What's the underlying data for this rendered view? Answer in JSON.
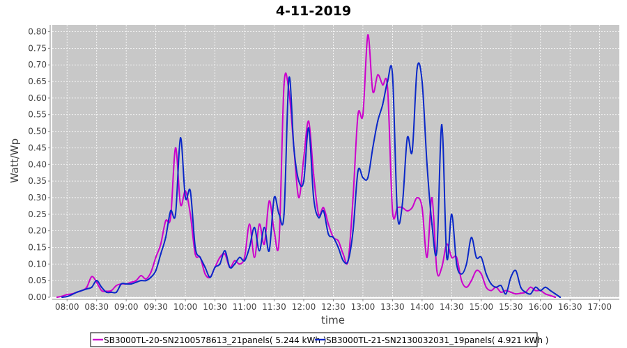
{
  "chart_data": {
    "type": "line",
    "title": "4-11-2019",
    "xlabel": "time",
    "ylabel": "Watt/Wp",
    "ylim": [
      0,
      0.82
    ],
    "xlim": [
      "07:45",
      "17:20"
    ],
    "grid": true,
    "legend_position": "bottom",
    "y_ticks": [
      "0.00",
      "0.05",
      "0.10",
      "0.15",
      "0.20",
      "0.25",
      "0.30",
      "0.35",
      "0.40",
      "0.45",
      "0.50",
      "0.55",
      "0.60",
      "0.65",
      "0.70",
      "0.75",
      "0.80"
    ],
    "x_ticks": [
      "08:00",
      "08:30",
      "09:00",
      "09:30",
      "10:00",
      "10:30",
      "11:00",
      "11:30",
      "12:00",
      "12:30",
      "13:00",
      "13:30",
      "14:00",
      "14:30",
      "15:00",
      "15:30",
      "16:00",
      "16:30",
      "17:00"
    ],
    "colors": {
      "plot_background": "#c8c8c8",
      "grid": "#ffffff",
      "series_1": "#cc00cc",
      "series_2": "#0a28c8"
    },
    "series": [
      {
        "name": "SB3000TL-20-SN2100578613_21panels( 5.244 kWh )",
        "color": "#cc00cc",
        "points": [
          [
            "07:50",
            0.0
          ],
          [
            "07:55",
            0.003
          ],
          [
            "08:00",
            0.008
          ],
          [
            "08:05",
            0.01
          ],
          [
            "08:10",
            0.015
          ],
          [
            "08:15",
            0.02
          ],
          [
            "08:20",
            0.03
          ],
          [
            "08:25",
            0.062
          ],
          [
            "08:30",
            0.045
          ],
          [
            "08:35",
            0.02
          ],
          [
            "08:40",
            0.018
          ],
          [
            "08:45",
            0.02
          ],
          [
            "08:50",
            0.035
          ],
          [
            "08:55",
            0.04
          ],
          [
            "09:00",
            0.04
          ],
          [
            "09:05",
            0.045
          ],
          [
            "09:10",
            0.05
          ],
          [
            "09:15",
            0.065
          ],
          [
            "09:20",
            0.055
          ],
          [
            "09:25",
            0.075
          ],
          [
            "09:30",
            0.12
          ],
          [
            "09:35",
            0.16
          ],
          [
            "09:40",
            0.23
          ],
          [
            "09:45",
            0.24
          ],
          [
            "09:50",
            0.45
          ],
          [
            "09:55",
            0.28
          ],
          [
            "10:00",
            0.32
          ],
          [
            "10:05",
            0.25
          ],
          [
            "10:10",
            0.13
          ],
          [
            "10:15",
            0.12
          ],
          [
            "10:20",
            0.07
          ],
          [
            "10:25",
            0.06
          ],
          [
            "10:30",
            0.09
          ],
          [
            "10:35",
            0.12
          ],
          [
            "10:40",
            0.13
          ],
          [
            "10:45",
            0.09
          ],
          [
            "10:50",
            0.11
          ],
          [
            "10:55",
            0.1
          ],
          [
            "11:00",
            0.12
          ],
          [
            "11:05",
            0.22
          ],
          [
            "11:10",
            0.12
          ],
          [
            "11:15",
            0.22
          ],
          [
            "11:20",
            0.16
          ],
          [
            "11:25",
            0.29
          ],
          [
            "11:30",
            0.2
          ],
          [
            "11:35",
            0.17
          ],
          [
            "11:40",
            0.64
          ],
          [
            "11:45",
            0.62
          ],
          [
            "11:50",
            0.45
          ],
          [
            "11:55",
            0.3
          ],
          [
            "12:00",
            0.42
          ],
          [
            "12:05",
            0.53
          ],
          [
            "12:10",
            0.37
          ],
          [
            "12:15",
            0.25
          ],
          [
            "12:20",
            0.27
          ],
          [
            "12:25",
            0.22
          ],
          [
            "12:30",
            0.18
          ],
          [
            "12:35",
            0.17
          ],
          [
            "12:40",
            0.13
          ],
          [
            "12:45",
            0.11
          ],
          [
            "12:50",
            0.3
          ],
          [
            "12:55",
            0.55
          ],
          [
            "13:00",
            0.55
          ],
          [
            "13:05",
            0.79
          ],
          [
            "13:10",
            0.62
          ],
          [
            "13:15",
            0.67
          ],
          [
            "13:20",
            0.64
          ],
          [
            "13:25",
            0.63
          ],
          [
            "13:30",
            0.26
          ],
          [
            "13:35",
            0.27
          ],
          [
            "13:40",
            0.27
          ],
          [
            "13:45",
            0.26
          ],
          [
            "13:50",
            0.27
          ],
          [
            "13:55",
            0.3
          ],
          [
            "14:00",
            0.27
          ],
          [
            "14:05",
            0.12
          ],
          [
            "14:10",
            0.3
          ],
          [
            "14:15",
            0.08
          ],
          [
            "14:20",
            0.09
          ],
          [
            "14:25",
            0.16
          ],
          [
            "14:30",
            0.12
          ],
          [
            "14:35",
            0.12
          ],
          [
            "14:40",
            0.05
          ],
          [
            "14:45",
            0.03
          ],
          [
            "14:50",
            0.05
          ],
          [
            "14:55",
            0.08
          ],
          [
            "15:00",
            0.07
          ],
          [
            "15:05",
            0.03
          ],
          [
            "15:10",
            0.02
          ],
          [
            "15:15",
            0.03
          ],
          [
            "15:20",
            0.015
          ],
          [
            "15:25",
            0.02
          ],
          [
            "15:30",
            0.015
          ],
          [
            "15:35",
            0.01
          ],
          [
            "15:40",
            0.012
          ],
          [
            "15:45",
            0.015
          ],
          [
            "15:50",
            0.03
          ],
          [
            "15:55",
            0.02
          ],
          [
            "16:00",
            0.02
          ],
          [
            "16:05",
            0.01
          ],
          [
            "16:10",
            0.005
          ],
          [
            "16:15",
            0.0
          ]
        ]
      },
      {
        "name": "SB3000TL-21-SN2130032031_19panels( 4.921 kWh )",
        "color": "#0a28c8",
        "points": [
          [
            "07:55",
            0.0
          ],
          [
            "08:00",
            0.002
          ],
          [
            "08:05",
            0.008
          ],
          [
            "08:10",
            0.015
          ],
          [
            "08:15",
            0.02
          ],
          [
            "08:20",
            0.025
          ],
          [
            "08:25",
            0.03
          ],
          [
            "08:30",
            0.05
          ],
          [
            "08:35",
            0.03
          ],
          [
            "08:40",
            0.015
          ],
          [
            "08:45",
            0.015
          ],
          [
            "08:50",
            0.015
          ],
          [
            "08:55",
            0.04
          ],
          [
            "09:00",
            0.04
          ],
          [
            "09:05",
            0.04
          ],
          [
            "09:10",
            0.045
          ],
          [
            "09:15",
            0.05
          ],
          [
            "09:20",
            0.05
          ],
          [
            "09:25",
            0.06
          ],
          [
            "09:30",
            0.08
          ],
          [
            "09:35",
            0.13
          ],
          [
            "09:40",
            0.18
          ],
          [
            "09:45",
            0.26
          ],
          [
            "09:50",
            0.25
          ],
          [
            "09:55",
            0.48
          ],
          [
            "10:00",
            0.3
          ],
          [
            "10:05",
            0.32
          ],
          [
            "10:10",
            0.15
          ],
          [
            "10:15",
            0.12
          ],
          [
            "10:20",
            0.09
          ],
          [
            "10:25",
            0.06
          ],
          [
            "10:30",
            0.09
          ],
          [
            "10:35",
            0.1
          ],
          [
            "10:40",
            0.14
          ],
          [
            "10:45",
            0.09
          ],
          [
            "10:50",
            0.1
          ],
          [
            "10:55",
            0.12
          ],
          [
            "11:00",
            0.11
          ],
          [
            "11:05",
            0.15
          ],
          [
            "11:10",
            0.21
          ],
          [
            "11:15",
            0.14
          ],
          [
            "11:20",
            0.21
          ],
          [
            "11:25",
            0.14
          ],
          [
            "11:30",
            0.3
          ],
          [
            "11:35",
            0.25
          ],
          [
            "11:40",
            0.25
          ],
          [
            "11:45",
            0.66
          ],
          [
            "11:50",
            0.45
          ],
          [
            "11:55",
            0.35
          ],
          [
            "12:00",
            0.35
          ],
          [
            "12:05",
            0.51
          ],
          [
            "12:10",
            0.3
          ],
          [
            "12:15",
            0.24
          ],
          [
            "12:20",
            0.26
          ],
          [
            "12:25",
            0.19
          ],
          [
            "12:30",
            0.18
          ],
          [
            "12:35",
            0.15
          ],
          [
            "12:40",
            0.11
          ],
          [
            "12:45",
            0.11
          ],
          [
            "12:50",
            0.2
          ],
          [
            "12:55",
            0.38
          ],
          [
            "13:00",
            0.36
          ],
          [
            "13:05",
            0.36
          ],
          [
            "13:10",
            0.45
          ],
          [
            "13:15",
            0.53
          ],
          [
            "13:20",
            0.58
          ],
          [
            "13:25",
            0.65
          ],
          [
            "13:30",
            0.67
          ],
          [
            "13:35",
            0.25
          ],
          [
            "13:40",
            0.28
          ],
          [
            "13:45",
            0.48
          ],
          [
            "13:50",
            0.44
          ],
          [
            "13:55",
            0.69
          ],
          [
            "14:00",
            0.65
          ],
          [
            "14:05",
            0.4
          ],
          [
            "14:10",
            0.22
          ],
          [
            "14:15",
            0.14
          ],
          [
            "14:20",
            0.52
          ],
          [
            "14:25",
            0.12
          ],
          [
            "14:30",
            0.25
          ],
          [
            "14:35",
            0.1
          ],
          [
            "14:40",
            0.07
          ],
          [
            "14:45",
            0.1
          ],
          [
            "14:50",
            0.18
          ],
          [
            "14:55",
            0.12
          ],
          [
            "15:00",
            0.12
          ],
          [
            "15:05",
            0.07
          ],
          [
            "15:10",
            0.04
          ],
          [
            "15:15",
            0.03
          ],
          [
            "15:20",
            0.035
          ],
          [
            "15:25",
            0.01
          ],
          [
            "15:30",
            0.06
          ],
          [
            "15:35",
            0.08
          ],
          [
            "15:40",
            0.03
          ],
          [
            "15:45",
            0.015
          ],
          [
            "15:50",
            0.01
          ],
          [
            "15:55",
            0.03
          ],
          [
            "16:00",
            0.02
          ],
          [
            "16:05",
            0.03
          ],
          [
            "16:10",
            0.02
          ],
          [
            "16:15",
            0.01
          ],
          [
            "16:20",
            0.0
          ]
        ]
      }
    ]
  }
}
